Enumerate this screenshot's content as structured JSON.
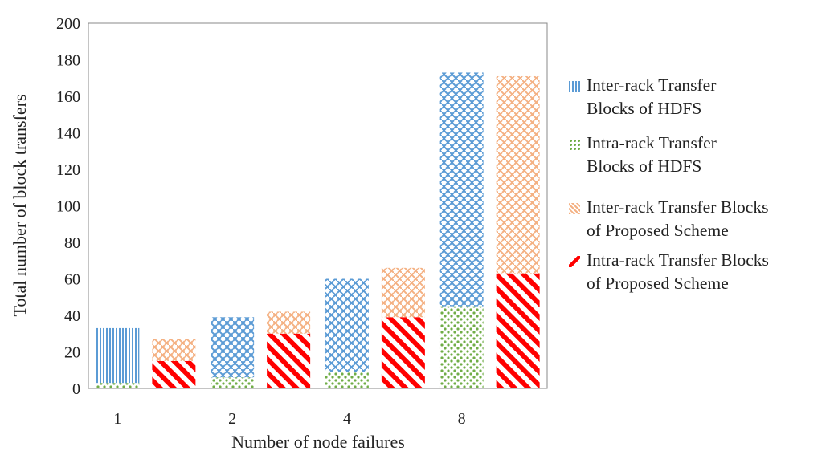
{
  "chart_data": {
    "type": "bar",
    "stacked": true,
    "xlabel": "Number of node failures",
    "ylabel": "Total number of block transfers",
    "ylim": [
      0,
      200
    ],
    "yticks": [
      0,
      20,
      40,
      60,
      80,
      100,
      120,
      140,
      160,
      180,
      200
    ],
    "categories": [
      "1",
      "2",
      "4",
      "8"
    ],
    "groups": [
      {
        "scheme": "HDFS",
        "segments": [
          {
            "series": "Intra-rack Transfer Blocks of HDFS",
            "values": [
              3,
              6,
              9,
              45
            ]
          },
          {
            "series": "Inter-rack Transfer Blocks of HDFS",
            "values": [
              30,
              33,
              51,
              128
            ]
          }
        ]
      },
      {
        "scheme": "Proposed",
        "segments": [
          {
            "series": "Intra-rack Transfer Blocks of Proposed Scheme",
            "values": [
              15,
              30,
              39,
              63
            ]
          },
          {
            "series": "Inter-rack Transfer Blocks of Proposed Scheme",
            "values": [
              12,
              12,
              27,
              108
            ]
          }
        ]
      }
    ],
    "legend": {
      "placement": "right",
      "entries": [
        {
          "key": "hdfs-inter",
          "lines": [
            "Inter-rack Transfer",
            "Blocks of HDFS"
          ],
          "color": "#5b9bd5",
          "pattern": "vertical-lines"
        },
        {
          "key": "hdfs-intra",
          "lines": [
            "Intra-rack Transfer",
            "Blocks of HDFS"
          ],
          "color": "#70ad47",
          "pattern": "dots"
        },
        {
          "key": "prop-inter",
          "lines": [
            "Inter-rack Transfer Blocks",
            "of Proposed Scheme"
          ],
          "color": "#f4b183",
          "pattern": "weave"
        },
        {
          "key": "prop-intra",
          "lines": [
            "Intra-rack Transfer Blocks",
            "of Proposed Scheme"
          ],
          "color": "#ff0000",
          "pattern": "diagonal-stripes"
        }
      ]
    },
    "grid": false
  }
}
